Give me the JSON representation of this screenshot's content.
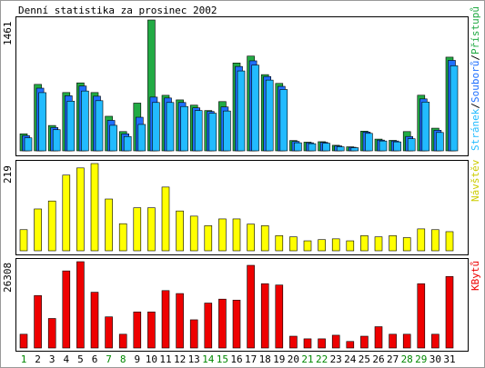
{
  "chart_data": {
    "type": "bar",
    "title": "Denní statistika za prosinec 2002",
    "categories": [
      "1",
      "2",
      "3",
      "4",
      "5",
      "6",
      "7",
      "8",
      "9",
      "10",
      "11",
      "12",
      "13",
      "14",
      "15",
      "16",
      "17",
      "18",
      "19",
      "20",
      "21",
      "22",
      "23",
      "24",
      "25",
      "26",
      "27",
      "28",
      "29",
      "30",
      "31"
    ],
    "weekend_days": [
      "1",
      "7",
      "8",
      "14",
      "15",
      "21",
      "22",
      "28",
      "29"
    ],
    "colors": {
      "pristupu": "#22aa44",
      "souboru": "#1e6fff",
      "stranek": "#22bbff",
      "navstev": "#ffff00",
      "kbytu": "#ee0000",
      "weekday_label": "#000000",
      "weekend_label": "#008800"
    },
    "panels": [
      {
        "id": "hits",
        "axis_max_label": "1461",
        "ylim": [
          0,
          1461
        ],
        "legend": {
          "prefix_text": "Stránek",
          "sep1": "/",
          "mid_text": "Souborů",
          "sep2": "/",
          "suffix_text": "Přístupů"
        },
        "series": [
          {
            "name": "Přístupů",
            "values": [
              190,
              742,
              283,
              651,
              759,
              651,
              386,
              215,
              533,
              1461,
              620,
              569,
              510,
              450,
              550,
              981,
              1058,
              851,
              753,
              115,
              97,
              102,
              62,
              45,
              220,
              131,
              117,
              215,
              621,
              253,
              1046
            ]
          },
          {
            "name": "Souborů",
            "values": [
              170,
              700,
              260,
              615,
              724,
              610,
              340,
              190,
              375,
              600,
              590,
              540,
              480,
              440,
              490,
              942,
              1005,
              830,
              720,
              105,
              90,
              95,
              55,
              40,
              210,
              120,
              110,
              160,
              580,
              230,
              1010
            ]
          },
          {
            "name": "Stránek",
            "values": [
              145,
              650,
              236,
              555,
              668,
              560,
              285,
              160,
              295,
              540,
              540,
              495,
              450,
              420,
              445,
              892,
              957,
              790,
              685,
              90,
              80,
              85,
              45,
              35,
              195,
              110,
              100,
              135,
              545,
              205,
              950
            ]
          }
        ]
      },
      {
        "id": "visits",
        "axis_max_label": "219",
        "ylim": [
          0,
          219
        ],
        "legend": {
          "text": "Návštěv"
        },
        "series": [
          {
            "name": "Návštěv",
            "values": [
              53,
              105,
              125,
              190,
              208,
              219,
              130,
              68,
              108,
              108,
              160,
              100,
              87,
              63,
              80,
              80,
              67,
              63,
              38,
              35,
              25,
              28,
              30,
              25,
              38,
              35,
              38,
              33,
              55,
              53,
              48
            ]
          }
        ]
      },
      {
        "id": "kbytes",
        "axis_max_label": "26308",
        "ylim": [
          0,
          26308
        ],
        "legend": {
          "text": "KBytů"
        },
        "series": [
          {
            "name": "KBytů",
            "values": [
              4200,
              16000,
              9000,
              23500,
              26308,
              17000,
              9500,
              4200,
              11000,
              11000,
              17500,
              16600,
              8600,
              13700,
              14900,
              14600,
              25200,
              19600,
              19200,
              3600,
              2800,
              2800,
              3900,
              2000,
              3600,
              6500,
              4200,
              4200,
              19600,
              4200,
              21800
            ]
          }
        ]
      }
    ]
  }
}
